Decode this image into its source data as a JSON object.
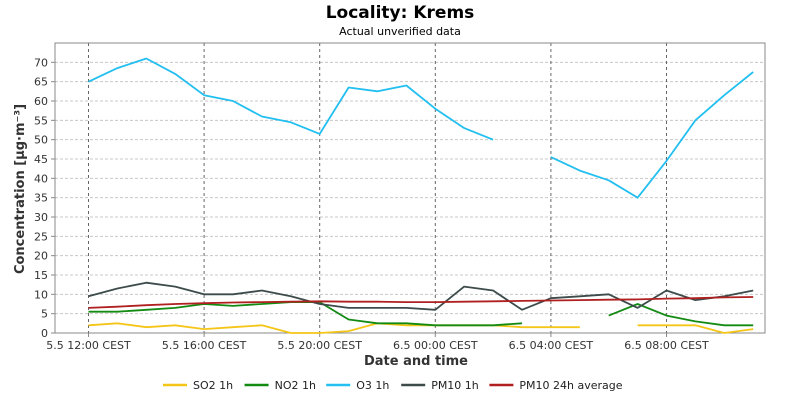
{
  "chart_data": {
    "type": "line",
    "title": "Locality: Krems",
    "subtitle": "Actual unverified data",
    "xlabel": "Date and time",
    "ylabel": "Concentration [µg·m⁻³]",
    "ylim": [
      0,
      75
    ],
    "y_ticks": [
      0,
      5,
      10,
      15,
      20,
      25,
      30,
      35,
      40,
      45,
      50,
      55,
      60,
      65,
      70
    ],
    "x_range": [
      0,
      24
    ],
    "x_ticks": [
      {
        "x": 0,
        "label": "5.5 12:00 CEST"
      },
      {
        "x": 4,
        "label": "5.5 16:00 CEST"
      },
      {
        "x": 8,
        "label": "5.5 20:00 CEST"
      },
      {
        "x": 12,
        "label": "6.5 00:00 CEST"
      },
      {
        "x": 16,
        "label": "6.5 04:00 CEST"
      },
      {
        "x": 20,
        "label": "6.5 08:00 CEST"
      }
    ],
    "grid": true,
    "legend_position": "bottom",
    "series": [
      {
        "name": "SO2 1h",
        "color": "#f5c518",
        "values": [
          2,
          2.5,
          1.5,
          2,
          1,
          1.5,
          2,
          0,
          0,
          0.5,
          2.5,
          2,
          2,
          2,
          2,
          1.5,
          1.5,
          1.5,
          null,
          2,
          2,
          2,
          0,
          1
        ]
      },
      {
        "name": "NO2 1h",
        "color": "#138b13",
        "values": [
          5.5,
          5.5,
          6,
          6.5,
          7.5,
          7,
          7.5,
          8,
          8,
          3.5,
          2.5,
          2.5,
          2,
          2,
          2,
          2.5,
          null,
          null,
          4.5,
          7.5,
          4.5,
          3,
          2,
          2
        ]
      },
      {
        "name": "O3 1h",
        "color": "#22bff0",
        "values": [
          65,
          68.5,
          71,
          67,
          61.5,
          60,
          56,
          54.5,
          51.5,
          63.5,
          62.5,
          64,
          58,
          53,
          50,
          null,
          45.5,
          42,
          39.5,
          35,
          44.5,
          55,
          61.5,
          67.5
        ]
      },
      {
        "name": "PM10 1h",
        "color": "#3d4b4b",
        "values": [
          9.5,
          11.5,
          13,
          12,
          10,
          10,
          11,
          9.5,
          7.5,
          6.5,
          6.5,
          6.5,
          6,
          12,
          11,
          6,
          9,
          9.5,
          10,
          6.5,
          11,
          8.5,
          9.5,
          11
        ]
      },
      {
        "name": "PM10 24h average",
        "color": "#b02020",
        "values": [
          6.5,
          6.8,
          7.2,
          7.5,
          7.7,
          7.9,
          8.0,
          8.1,
          8.2,
          8.1,
          8.1,
          8.0,
          8.0,
          8.1,
          8.2,
          8.3,
          8.4,
          8.5,
          8.6,
          8.7,
          8.9,
          9.0,
          9.2,
          9.3
        ]
      }
    ]
  }
}
